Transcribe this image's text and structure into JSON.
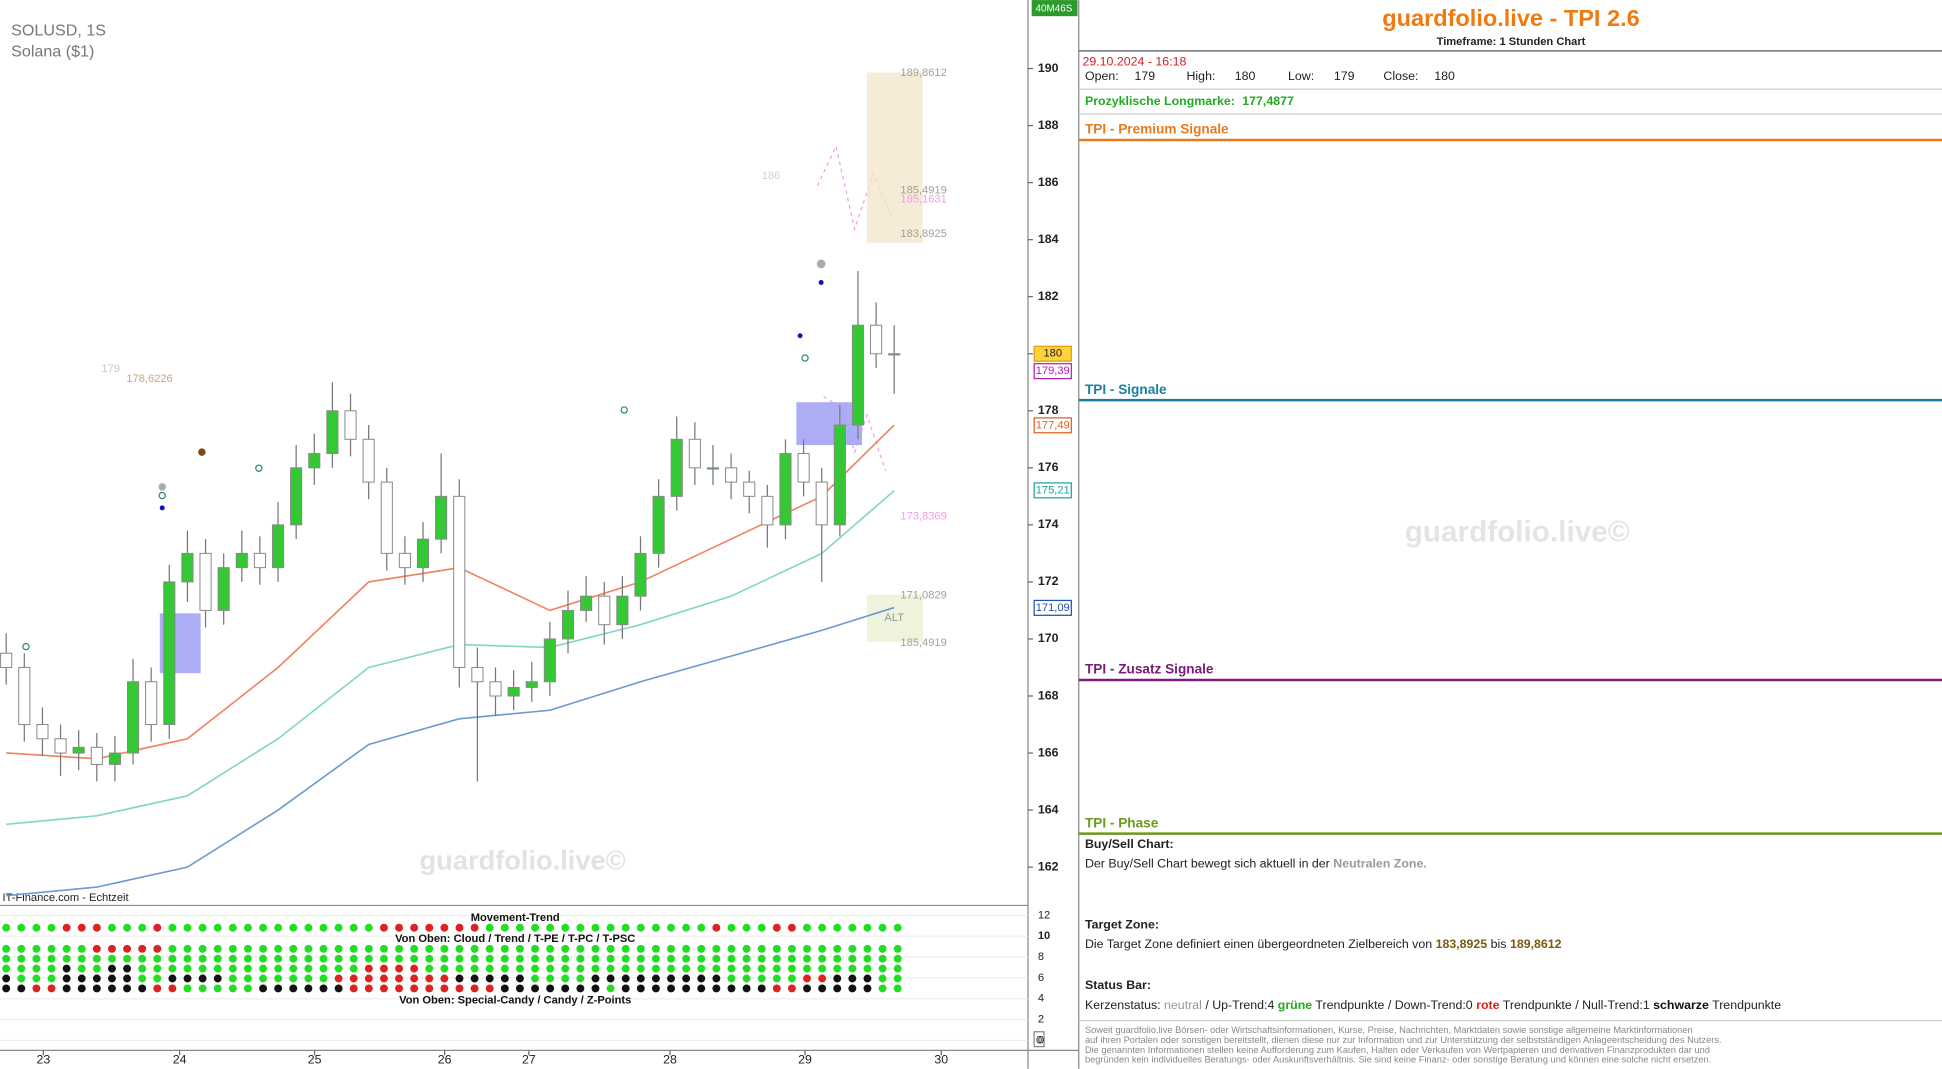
{
  "chart_data": {
    "type": "candlestick",
    "symbol": "SOLUSD, 1S",
    "subtitle": "Solana ($1)",
    "source": "IT-Finance.com - Echtzeit",
    "watermark": "guardfolio.live©",
    "timer": "40M46S",
    "ylim": [
      160.7,
      192.4
    ],
    "yticks": [
      162,
      164,
      166,
      168,
      170,
      172,
      174,
      176,
      178,
      180,
      182,
      184,
      186,
      188,
      190
    ],
    "x_labels": [
      "23",
      "24",
      "25",
      "26",
      "27",
      "28",
      "29",
      "30"
    ],
    "up_color": "#34c934",
    "down_color": "#ffffff",
    "candles": {
      "open": [
        169.5,
        169,
        167,
        166.5,
        166,
        166.2,
        165.6,
        166,
        168.5,
        167,
        172,
        173,
        171,
        172.5,
        173,
        172.5,
        174,
        176,
        176.5,
        178,
        177,
        175.5,
        173,
        172.5,
        173.5,
        175,
        169,
        168.5,
        168,
        168.3,
        168.5,
        170,
        171,
        171.5,
        170.5,
        171.5,
        173,
        175,
        177,
        176,
        176,
        175.5,
        175,
        174,
        176.5,
        175.5,
        174,
        177.5,
        181,
        180
      ],
      "high": [
        170.2,
        169.5,
        167.6,
        167,
        166.8,
        166.7,
        166.6,
        169.3,
        169,
        172.6,
        173.8,
        173.5,
        173,
        173.8,
        173.6,
        174.8,
        176.8,
        177.2,
        179,
        178.6,
        177.5,
        176,
        173.6,
        174.1,
        176.5,
        175.6,
        169.7,
        169,
        168.9,
        169.2,
        170.6,
        171.7,
        172.2,
        172,
        172.2,
        173.6,
        175.6,
        177.8,
        177.6,
        176.8,
        176.5,
        175.9,
        175.4,
        177,
        177,
        176,
        178.2,
        182.9,
        181.8,
        181
      ],
      "low": [
        168.4,
        166.4,
        165.9,
        165.2,
        165.4,
        165,
        165,
        165.6,
        166.4,
        166.5,
        171.3,
        170.4,
        170.5,
        172,
        171.9,
        172,
        173.5,
        175.4,
        176,
        176.4,
        174.9,
        172.4,
        171.9,
        172,
        173,
        168.3,
        165,
        167.3,
        167.5,
        167.8,
        168,
        169.5,
        170.6,
        169.8,
        170,
        171,
        172.5,
        174.5,
        175.4,
        175.4,
        174.9,
        174.4,
        173.2,
        173.5,
        175,
        172,
        173.6,
        177,
        179.5,
        178.6
      ],
      "close": [
        169,
        167,
        166.5,
        166,
        166.2,
        165.6,
        166,
        168.5,
        167,
        172,
        173,
        171,
        172.5,
        173,
        172.5,
        174,
        176,
        176.5,
        178,
        177,
        175.5,
        173,
        172.5,
        173.5,
        175,
        169,
        168.5,
        168,
        168.3,
        168.5,
        170,
        171,
        171.5,
        170.5,
        171.5,
        173,
        175,
        177,
        176,
        176,
        175.5,
        175,
        174,
        176.5,
        175.5,
        174,
        177.5,
        181,
        180,
        180
      ]
    },
    "series": [
      {
        "color": "#f08060",
        "x": [
          0,
          5,
          10,
          15,
          20,
          25,
          30,
          35,
          40,
          45,
          49
        ],
        "values": [
          166,
          165.8,
          166.5,
          169,
          172,
          172.5,
          171,
          172,
          173.5,
          175,
          177.5
        ]
      },
      {
        "color": "#7fd6c8",
        "x": [
          0,
          5,
          10,
          15,
          20,
          25,
          30,
          35,
          40,
          45,
          49
        ],
        "values": [
          163.5,
          163.8,
          164.5,
          166.5,
          169,
          169.8,
          169.7,
          170.5,
          171.5,
          173,
          175.2
        ]
      },
      {
        "color": "#6a9ad0",
        "x": [
          0,
          5,
          10,
          15,
          20,
          25,
          30,
          35,
          40,
          45,
          49
        ],
        "values": [
          161,
          161.3,
          162,
          164,
          166.3,
          167.2,
          167.5,
          168.5,
          169.4,
          170.3,
          171.1
        ]
      }
    ],
    "target_zone": {
      "low": 183.8925,
      "high": 189.8612,
      "color": "#f3e6cc"
    },
    "zones": [
      {
        "low": 168.8,
        "high": 170.9,
        "color": "#9f9ff5"
      },
      {
        "low": 176.8,
        "high": 178.3,
        "color": "#9f9ff5"
      }
    ],
    "annotations": [
      {
        "value": 189.8612,
        "label": "189,8612",
        "color": "#a0a0a0"
      },
      {
        "value": 185.4919,
        "label": "185,4919",
        "color": "#a0a0a0"
      },
      {
        "value": 185.1631,
        "label": "185,1631",
        "color": "#f09ce8"
      },
      {
        "value": 183.8925,
        "label": "183,8925",
        "color": "#a0a0a0"
      },
      {
        "value": 178.6226,
        "label": "178,6226",
        "color": "#c8a878"
      },
      {
        "value": 179,
        "label": "179",
        "color": "#c8c8c8"
      },
      {
        "value": 186,
        "label": "186",
        "color": "#d0d0d0"
      },
      {
        "value": 173.8369,
        "label": "173,8369",
        "color": "#f09ce8"
      },
      {
        "value": 171.0829,
        "label": "171,0829",
        "color": "#a0a0a0"
      },
      {
        "value": 185.4919,
        "label": "185,4919",
        "color": "#a0a0a0"
      }
    ],
    "alt_label": "ALT",
    "price_tags": [
      {
        "value": 180,
        "label": "180",
        "color": "#e0a000",
        "fill": "#ffd040"
      },
      {
        "value": 179.39,
        "label": "179,39",
        "color": "#b020b0",
        "fill": "#ffffff"
      },
      {
        "value": 177.49,
        "label": "177,49",
        "color": "#e06020",
        "fill": "#ffffff"
      },
      {
        "value": 175.21,
        "label": "175,21",
        "color": "#20a0a0",
        "fill": "#ffffff"
      },
      {
        "value": 171.09,
        "label": "171,09",
        "color": "#2050b0",
        "fill": "#ffffff"
      }
    ],
    "indicator": {
      "ylim": [
        0,
        12
      ],
      "yticks": [
        0,
        2,
        4,
        6,
        8,
        10,
        12
      ],
      "labels": [
        "Movement-Trend",
        "Von Oben: Cloud / Trend / T-PE / T-PC / T-PSC",
        "Von Oben: Special-Candy / Candy / Z-Points"
      ],
      "current": "0",
      "dot_colors": {
        "G": "#22dd22",
        "R": "#dd2222",
        "K": "#111111"
      },
      "rows": [
        [
          [
            "G",
            4
          ],
          [
            "R",
            3
          ],
          [
            "G",
            3
          ],
          [
            "R",
            1
          ],
          [
            "G",
            14
          ],
          [
            "R",
            7
          ],
          [
            "G",
            15
          ],
          [
            "R",
            1
          ],
          [
            "G",
            3
          ],
          [
            "R",
            2
          ],
          [
            "G",
            7
          ]
        ],
        [
          [
            "G",
            6
          ],
          [
            "R",
            5
          ],
          [
            "G",
            49
          ]
        ],
        [
          [
            "G",
            60
          ]
        ],
        [
          [
            "G",
            4
          ],
          [
            "K",
            1
          ],
          [
            "G",
            2
          ],
          [
            "K",
            2
          ],
          [
            "G",
            15
          ],
          [
            "R",
            4
          ],
          [
            "G",
            32
          ]
        ],
        [
          [
            "K",
            1
          ],
          [
            "G",
            3
          ],
          [
            "K",
            5
          ],
          [
            "G",
            2
          ],
          [
            "K",
            4
          ],
          [
            "G",
            7
          ],
          [
            "R",
            8
          ],
          [
            "K",
            5
          ],
          [
            "G",
            4
          ],
          [
            "K",
            9
          ],
          [
            "G",
            5
          ],
          [
            "R",
            2
          ],
          [
            "K",
            3
          ],
          [
            "G",
            2
          ]
        ],
        [
          [
            "K",
            2
          ],
          [
            "R",
            2
          ],
          [
            "K",
            6
          ],
          [
            "R",
            2
          ],
          [
            "G",
            5
          ],
          [
            "K",
            6
          ],
          [
            "R",
            10
          ],
          [
            "K",
            7
          ],
          [
            "G",
            1
          ],
          [
            "K",
            10
          ],
          [
            "R",
            2
          ],
          [
            "K",
            5
          ],
          [
            "G",
            2
          ]
        ]
      ]
    }
  },
  "panel": {
    "title": "guardfolio.live - TPI 2.6",
    "timeframe": "Timeframe: 1 Stunden Chart",
    "datetime": "29.10.2024 - 16:18",
    "ohlc": [
      {
        "label": "Open:",
        "value": 179
      },
      {
        "label": "High:",
        "value": 180
      },
      {
        "label": "Low:",
        "value": 179
      },
      {
        "label": "Close:",
        "value": 180
      }
    ],
    "longmark_label": "Prozyklische Longmarke:",
    "longmark_value": "177,4877",
    "sections": [
      {
        "title": "TPI - Premium Signale",
        "color": "#e87a1e"
      },
      {
        "title": "TPI - Signale",
        "color": "#1a7f9e"
      },
      {
        "title": "TPI - Zusatz Signale",
        "color": "#7a1a7a"
      },
      {
        "title": "TPI - Phase",
        "color": "#6a9a1a"
      }
    ],
    "watermark": "guardfolio.live©",
    "buysell_title": "Buy/Sell Chart:",
    "buysell_text": "Der Buy/Sell Chart bewegt sich aktuell in der",
    "buysell_zone": "Neutralen Zone.",
    "target_title": "Target Zone:",
    "target_text": "Die Target Zone definiert einen übergeordneten Zielbereich von",
    "target_low": "183,8925",
    "target_mid": "bis",
    "target_high": "189,8612",
    "status_title": "Status Bar:",
    "status_parts": [
      {
        "text": "Kerzenstatus:",
        "color": "#222222",
        "bold": false
      },
      {
        "text": "neutral",
        "color": "#999999",
        "bold": false
      },
      {
        "text": "/ Up-Trend:4",
        "color": "#222222",
        "bold": false
      },
      {
        "text": "grüne",
        "color": "#22aa22",
        "bold": true
      },
      {
        "text": "Trendpunkte",
        "color": "#222222",
        "bold": false
      },
      {
        "text": "/ Down-Trend:0",
        "color": "#222222",
        "bold": false
      },
      {
        "text": "rote",
        "color": "#dd2222",
        "bold": true
      },
      {
        "text": "Trendpunkte",
        "color": "#222222",
        "bold": false
      },
      {
        "text": "/ Null-Trend:1",
        "color": "#222222",
        "bold": false
      },
      {
        "text": "schwarze",
        "color": "#111111",
        "bold": true
      },
      {
        "text": "Trendpunkte",
        "color": "#222222",
        "bold": false
      }
    ],
    "disclaimer": [
      "Soweit guardfolio.live Börsen- oder Wirtschaftsinformationen, Kurse, Preise, Nachrichten, Marktdaten sowie sonstige allgemeine Marktinformationen",
      "auf ihren Portalen oder sonstigen bereitstellt, dienen diese nur zur Information und zur Unterstützung der selbstständigen Anlageentscheidung des Nutzers.",
      "Die genannten Informationen stellen keine Aufforderung zum Kaufen, Halten oder Verkaufen von Wertpapieren und derivativen Finanzprodukten dar und",
      "begründen kein individuelles Beratungs- oder Auskunftsverhältnis. Sie sind keine Finanz- oder sonstige Beratung und können eine solche nicht ersetzen."
    ]
  }
}
